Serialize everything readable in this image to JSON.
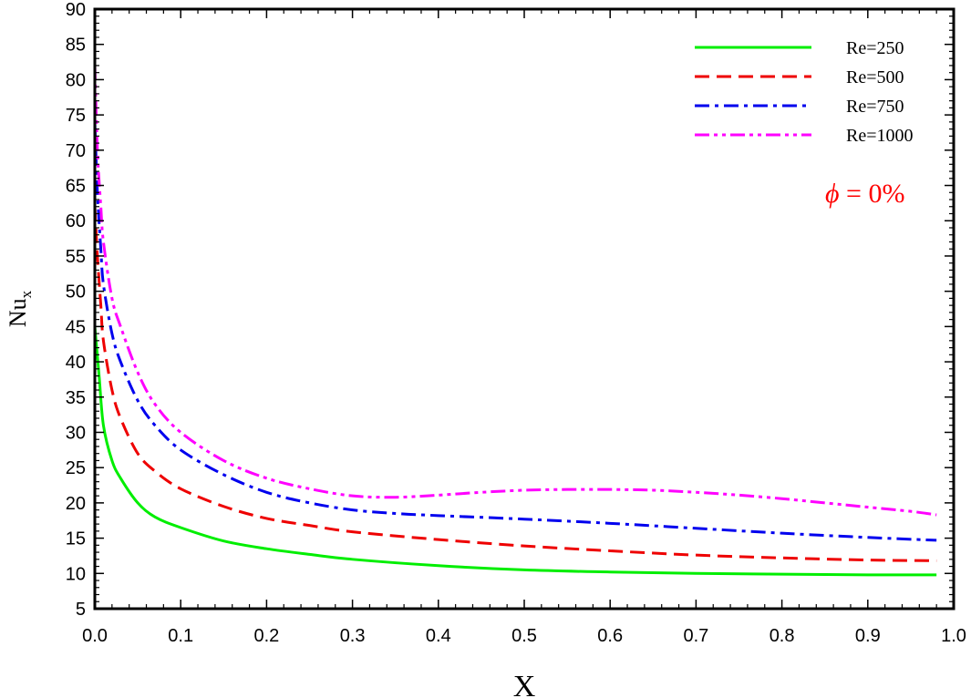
{
  "chart_data": {
    "type": "line",
    "title": "",
    "xlabel": "X",
    "ylabel": "Nu",
    "ylabel_sub": "x",
    "xlim": [
      0.0,
      1.0
    ],
    "ylim": [
      5,
      90
    ],
    "xticks": [
      "0.0",
      "0.1",
      "0.2",
      "0.3",
      "0.4",
      "0.5",
      "0.6",
      "0.7",
      "0.8",
      "0.9",
      "1.0"
    ],
    "yticks": [
      "5",
      "10",
      "15",
      "20",
      "25",
      "30",
      "35",
      "40",
      "45",
      "50",
      "55",
      "60",
      "65",
      "70",
      "75",
      "80",
      "85",
      "90"
    ],
    "grid": false,
    "legend_position": "top-right",
    "annotation": {
      "symbol": "ϕ",
      "text": " = 0%",
      "color": "#ff0000"
    },
    "series": [
      {
        "name": "Re=250",
        "color": "#00ee00",
        "dash": "solid",
        "x": [
          0.0,
          0.005,
          0.01,
          0.02,
          0.03,
          0.05,
          0.07,
          0.1,
          0.15,
          0.2,
          0.25,
          0.3,
          0.4,
          0.5,
          0.6,
          0.7,
          0.8,
          0.9,
          0.98
        ],
        "y": [
          45,
          38,
          31,
          26,
          23.5,
          20,
          18,
          16.5,
          14.6,
          13.5,
          12.7,
          12,
          11.1,
          10.5,
          10.2,
          10.0,
          9.9,
          9.8,
          9.8
        ]
      },
      {
        "name": "Re=500",
        "color": "#ee0000",
        "dash": "dash",
        "x": [
          0.0,
          0.003,
          0.007,
          0.01,
          0.02,
          0.03,
          0.05,
          0.07,
          0.1,
          0.15,
          0.2,
          0.25,
          0.3,
          0.4,
          0.5,
          0.6,
          0.7,
          0.8,
          0.9,
          0.98
        ],
        "y": [
          62,
          55,
          48,
          43,
          36,
          32,
          27,
          24.5,
          22,
          19.5,
          17.8,
          16.8,
          15.9,
          14.8,
          13.9,
          13.2,
          12.6,
          12.2,
          11.9,
          11.8
        ]
      },
      {
        "name": "Re=750",
        "color": "#0000ee",
        "dash": "dashdot",
        "x": [
          0.0,
          0.003,
          0.007,
          0.01,
          0.02,
          0.03,
          0.05,
          0.07,
          0.1,
          0.15,
          0.2,
          0.25,
          0.3,
          0.35,
          0.4,
          0.5,
          0.6,
          0.7,
          0.8,
          0.9,
          0.98
        ],
        "y": [
          74,
          64,
          56,
          51,
          44,
          40,
          34.5,
          31,
          27.5,
          24,
          21.5,
          20,
          19,
          18.5,
          18.2,
          17.7,
          17.1,
          16.4,
          15.7,
          15.1,
          14.7
        ]
      },
      {
        "name": "Re=1000",
        "color": "#ff00ff",
        "dash": "dashdotdot",
        "x": [
          0.0,
          0.003,
          0.007,
          0.01,
          0.02,
          0.03,
          0.05,
          0.07,
          0.1,
          0.15,
          0.2,
          0.25,
          0.3,
          0.35,
          0.4,
          0.45,
          0.5,
          0.55,
          0.6,
          0.65,
          0.7,
          0.75,
          0.8,
          0.85,
          0.9,
          0.95,
          0.98
        ],
        "y": [
          82,
          70,
          62,
          57,
          49,
          45,
          38.5,
          34,
          30,
          26,
          23.5,
          22,
          21,
          20.8,
          21.1,
          21.5,
          21.8,
          21.9,
          21.9,
          21.8,
          21.5,
          21.1,
          20.6,
          20.0,
          19.4,
          18.8,
          18.3
        ]
      }
    ]
  }
}
